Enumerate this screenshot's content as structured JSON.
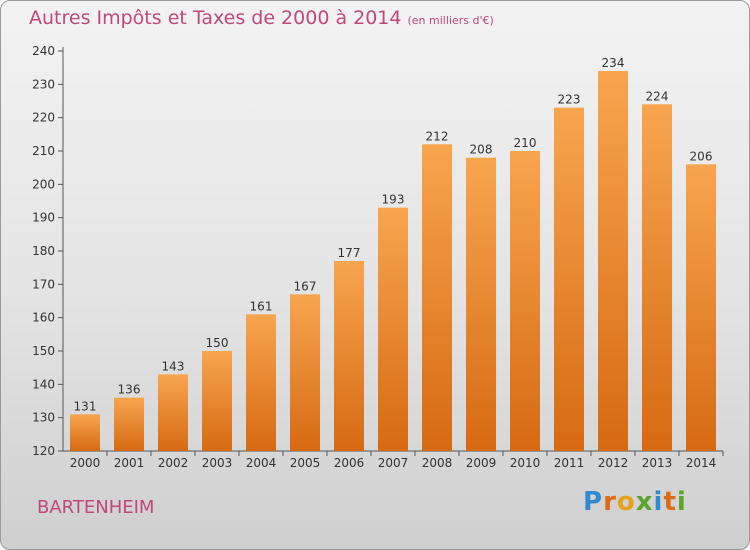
{
  "header": {
    "title": "Autres Impôts et Taxes de 2000 à 2014",
    "unit_note": "(en milliers d'€)"
  },
  "footer": {
    "commune": "BARTENHEIM",
    "logo": {
      "letters": [
        "P",
        "r",
        "o",
        "x",
        "i",
        "t",
        "i"
      ],
      "colors": [
        "#2e8bd0",
        "#e06a14",
        "#e8a21a",
        "#5aa52a",
        "#2e8bd0",
        "#e06a14",
        "#5aa52a"
      ]
    }
  },
  "colors": {
    "title": "#c0487a",
    "bar_top": "#f8a54f",
    "bar_bottom": "#d66a12"
  },
  "chart_data": {
    "type": "bar",
    "title": "Autres Impôts et Taxes de 2000 à 2014",
    "xlabel": "",
    "ylabel": "",
    "categories": [
      "2000",
      "2001",
      "2002",
      "2003",
      "2004",
      "2005",
      "2006",
      "2007",
      "2008",
      "2009",
      "2010",
      "2011",
      "2012",
      "2013",
      "2014"
    ],
    "values": [
      131,
      136,
      143,
      150,
      161,
      167,
      177,
      193,
      212,
      208,
      210,
      223,
      234,
      224,
      206
    ],
    "ylim": [
      120,
      240
    ],
    "yticks": [
      120,
      130,
      140,
      150,
      160,
      170,
      180,
      190,
      200,
      210,
      220,
      230,
      240
    ],
    "grid": false,
    "legend": "none"
  }
}
